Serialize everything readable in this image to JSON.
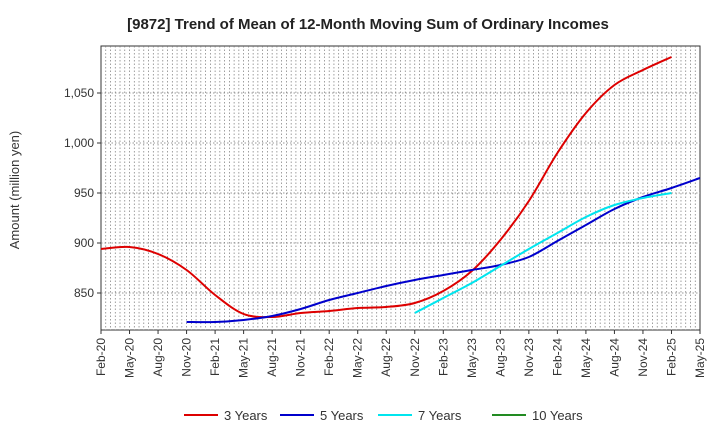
{
  "chart_data": {
    "type": "line",
    "title": "[9872]  Trend of Mean of 12-Month Moving Sum of Ordinary Incomes",
    "xlabel": "",
    "ylabel": "Amount (million yen)",
    "ylim": [
      813,
      1097
    ],
    "yticks": [
      850,
      900,
      950,
      1000,
      1050
    ],
    "ytick_labels": [
      "850",
      "900",
      "950",
      "1,000",
      "1,050"
    ],
    "x_categories": [
      "Feb-20",
      "May-20",
      "Aug-20",
      "Nov-20",
      "Feb-21",
      "May-21",
      "Aug-21",
      "Nov-21",
      "Feb-22",
      "May-22",
      "Aug-22",
      "Nov-22",
      "Feb-23",
      "May-23",
      "Aug-23",
      "Nov-23",
      "Feb-24",
      "May-24",
      "Aug-24",
      "Nov-24",
      "Feb-25",
      "May-25"
    ],
    "grid": true,
    "legend_position": "bottom",
    "series": [
      {
        "name": "3 Years",
        "color": "#dd0000",
        "start_index": 0,
        "values": [
          894,
          896,
          889,
          873,
          848,
          829,
          826,
          830,
          832,
          835,
          836,
          840,
          852,
          872,
          903,
          942,
          990,
          1030,
          1058,
          1073,
          1086
        ]
      },
      {
        "name": "5 Years",
        "color": "#0000cc",
        "start_index": 3,
        "values": [
          821,
          821,
          823,
          827,
          834,
          843,
          850,
          857,
          863,
          868,
          873,
          878,
          886,
          902,
          918,
          934,
          946,
          955,
          965
        ]
      },
      {
        "name": "7 Years",
        "color": "#00e5ee",
        "start_index": 11,
        "values": [
          830,
          845,
          860,
          877,
          894,
          910,
          926,
          938,
          945,
          950
        ]
      },
      {
        "name": "10 Years",
        "color": "#228b22",
        "start_index": 0,
        "values": []
      }
    ]
  }
}
